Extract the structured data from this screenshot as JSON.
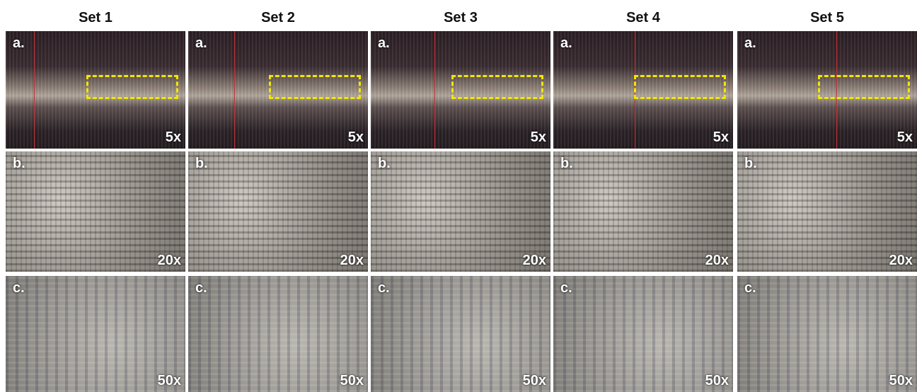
{
  "columns": [
    {
      "title": "Set 1",
      "panels": [
        {
          "label": "a.",
          "magnification": "5x"
        },
        {
          "label": "b.",
          "magnification": "20x"
        },
        {
          "label": "c.",
          "magnification": "50x"
        }
      ]
    },
    {
      "title": "Set 2",
      "panels": [
        {
          "label": "a.",
          "magnification": "5x"
        },
        {
          "label": "b.",
          "magnification": "20x"
        },
        {
          "label": "c.",
          "magnification": "50x"
        }
      ]
    },
    {
      "title": "Set 3",
      "panels": [
        {
          "label": "a.",
          "magnification": "5x"
        },
        {
          "label": "b.",
          "magnification": "20x"
        },
        {
          "label": "c.",
          "magnification": "50x"
        }
      ]
    },
    {
      "title": "Set 4",
      "panels": [
        {
          "label": "a.",
          "magnification": "5x"
        },
        {
          "label": "b.",
          "magnification": "20x"
        },
        {
          "label": "c.",
          "magnification": "50x"
        }
      ]
    },
    {
      "title": "Set 5",
      "panels": [
        {
          "label": "a.",
          "magnification": "5x"
        },
        {
          "label": "b.",
          "magnification": "20x"
        },
        {
          "label": "c.",
          "magnification": "50x"
        }
      ]
    }
  ]
}
